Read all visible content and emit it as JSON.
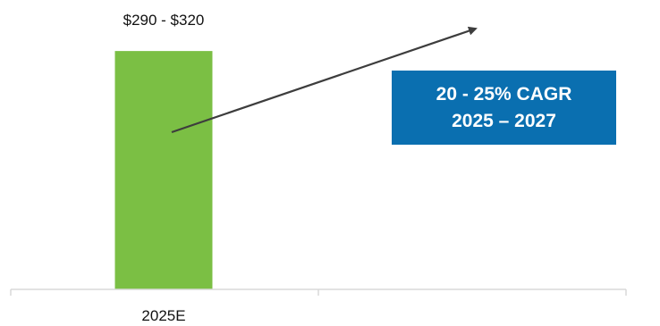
{
  "chart_data": {
    "type": "bar",
    "categories": [
      "2025E"
    ],
    "series": [
      {
        "values": [
          305
        ]
      }
    ],
    "data_labels": [
      "$290 - $320"
    ],
    "title": "",
    "xlabel": "",
    "ylabel": "",
    "ylim": [
      0,
      320
    ],
    "grid": false,
    "legend": "none",
    "colors": {
      "bar": "#7bbf44",
      "axis": "#d9d9d9",
      "arrow": "#3d3d3d",
      "callout_bg": "#0a6fb0",
      "callout_text": "#ffffff"
    }
  },
  "callout": {
    "line1": "20 - 25% CAGR",
    "line2": "2025 – 2027"
  }
}
